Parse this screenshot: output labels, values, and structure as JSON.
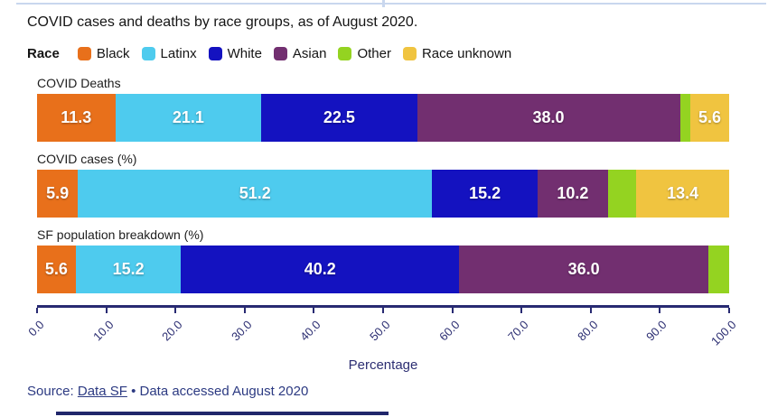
{
  "title": "COVID cases and deaths by race groups, as of August 2020.",
  "legend": {
    "label": "Race",
    "items": [
      {
        "label": "Black",
        "color": "#e8701b"
      },
      {
        "label": "Latinx",
        "color": "#4ecbee"
      },
      {
        "label": "White",
        "color": "#1412c0"
      },
      {
        "label": "Asian",
        "color": "#722f70"
      },
      {
        "label": "Other",
        "color": "#94d321"
      },
      {
        "label": "Race unknown",
        "color": "#f0c440"
      }
    ]
  },
  "chart_data": {
    "type": "bar",
    "orientation": "horizontal",
    "stacked": true,
    "categories": [
      "COVID Deaths",
      "COVID cases (%)",
      "SF population breakdown (%)"
    ],
    "series": [
      {
        "name": "Black",
        "color": "#e8701b",
        "values": [
          11.3,
          5.9,
          5.6
        ]
      },
      {
        "name": "Latinx",
        "color": "#4ecbee",
        "values": [
          21.1,
          51.2,
          15.2
        ]
      },
      {
        "name": "White",
        "color": "#1412c0",
        "values": [
          22.5,
          15.2,
          40.2
        ]
      },
      {
        "name": "Asian",
        "color": "#722f70",
        "values": [
          38.0,
          10.2,
          36.0
        ]
      },
      {
        "name": "Other",
        "color": "#94d321",
        "values": [
          1.5,
          4.1,
          3.0
        ]
      },
      {
        "name": "Race unknown",
        "color": "#f0c440",
        "values": [
          5.6,
          13.4,
          0
        ]
      }
    ],
    "label_min_value": 5,
    "xlabel": "Percentage",
    "x_ticks": [
      "0.0",
      "10.0",
      "20.0",
      "30.0",
      "40.0",
      "50.0",
      "60.0",
      "70.0",
      "80.0",
      "90.0",
      "100.0"
    ],
    "xlim": [
      0,
      100
    ],
    "grid": false,
    "legend_position": "top"
  },
  "source": {
    "prefix": "Source: ",
    "link": "Data SF",
    "suffix": " • Data accessed August 2020"
  },
  "colors": {
    "axis": "#282a72",
    "top_rule": "#c9d7ee",
    "bottom_rule": "#20266b"
  }
}
